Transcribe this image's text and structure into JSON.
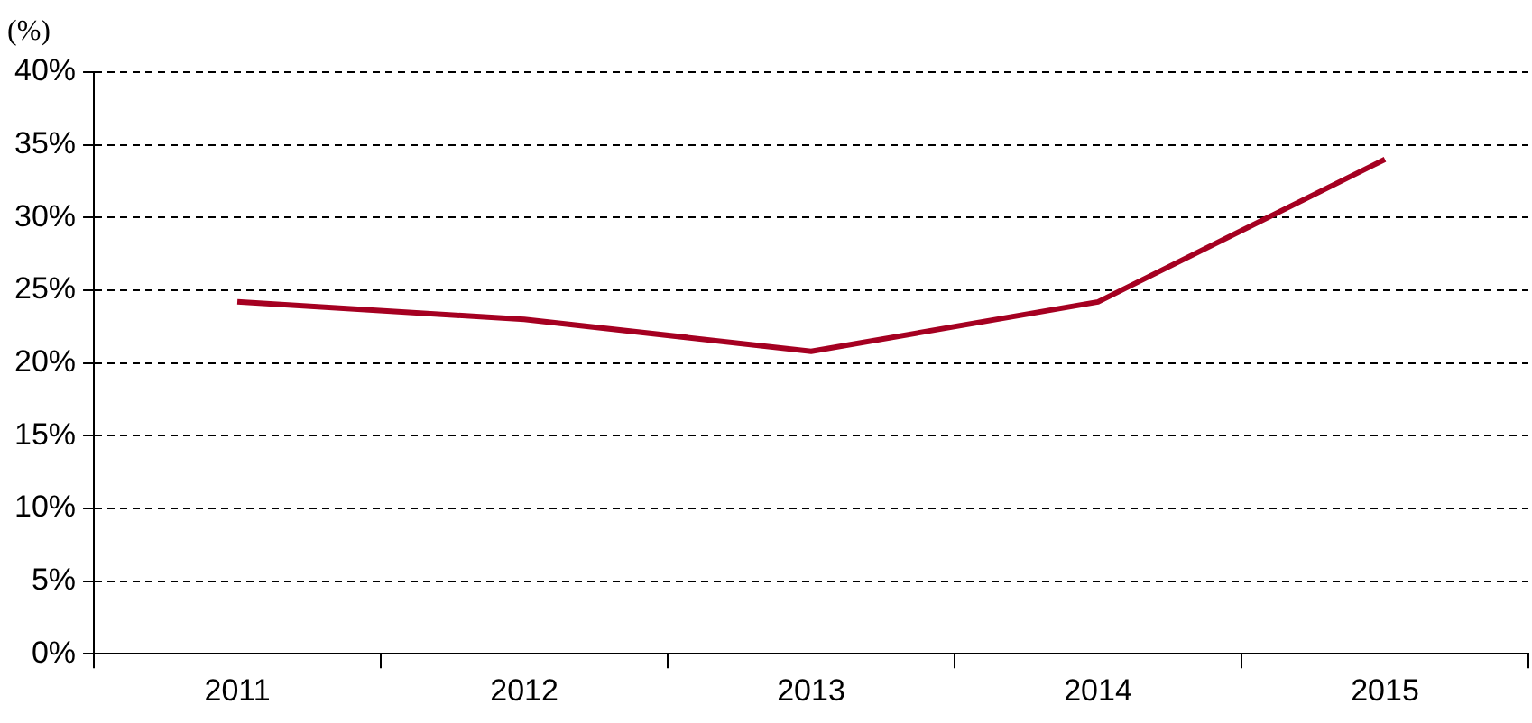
{
  "chart_data": {
    "type": "line",
    "ylabel": "(%)",
    "categories": [
      "2011",
      "2012",
      "2013",
      "2014",
      "2015"
    ],
    "series": [
      {
        "color": "#a50021",
        "values": [
          24.2,
          23.0,
          20.8,
          24.2,
          34.0
        ]
      }
    ],
    "ylim": [
      0,
      40
    ],
    "yticks": [
      {
        "value": 0,
        "label": "0%"
      },
      {
        "value": 5,
        "label": "5%"
      },
      {
        "value": 10,
        "label": "10%"
      },
      {
        "value": 15,
        "label": "15%"
      },
      {
        "value": 20,
        "label": "20%"
      },
      {
        "value": 25,
        "label": "25%"
      },
      {
        "value": 30,
        "label": "30%"
      },
      {
        "value": 35,
        "label": "35%"
      },
      {
        "value": 40,
        "label": "40%"
      }
    ],
    "grid": "y",
    "legend": false,
    "marker": "none",
    "line_style": "solid"
  }
}
